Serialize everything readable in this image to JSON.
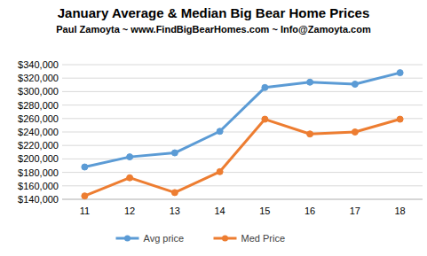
{
  "chart_data": {
    "type": "line",
    "title": "January Average & Median Big Bear Home Prices",
    "subtitle": "Paul Zamoyta ~ www.FindBigBearHomes.com ~ Info@Zamoyta.com",
    "categories": [
      "11",
      "12",
      "13",
      "14",
      "15",
      "16",
      "17",
      "18"
    ],
    "series": [
      {
        "name": "Avg price",
        "color": "#5b9bd5",
        "marker": "circle",
        "values": [
          188000,
          203000,
          209000,
          241000,
          306000,
          314000,
          311000,
          328000
        ]
      },
      {
        "name": "Med Price",
        "color": "#ed7d31",
        "marker": "circle",
        "values": [
          145000,
          172000,
          150000,
          181000,
          259000,
          237000,
          240000,
          259000
        ]
      }
    ],
    "ylim": [
      140000,
      340000
    ],
    "yticks": [
      {
        "value": 140000,
        "label": "$140,000"
      },
      {
        "value": 160000,
        "label": "$160,000"
      },
      {
        "value": 180000,
        "label": "$180,000"
      },
      {
        "value": 200000,
        "label": "$200,000"
      },
      {
        "value": 220000,
        "label": "$220,000"
      },
      {
        "value": 240000,
        "label": "$240,000"
      },
      {
        "value": 260000,
        "label": "$260,000"
      },
      {
        "value": 280000,
        "label": "$280,000"
      },
      {
        "value": 300000,
        "label": "$300,000"
      },
      {
        "value": 320000,
        "label": "$320,000"
      },
      {
        "value": 340000,
        "label": "$340,000"
      }
    ],
    "grid": true,
    "legend": "bottom"
  }
}
